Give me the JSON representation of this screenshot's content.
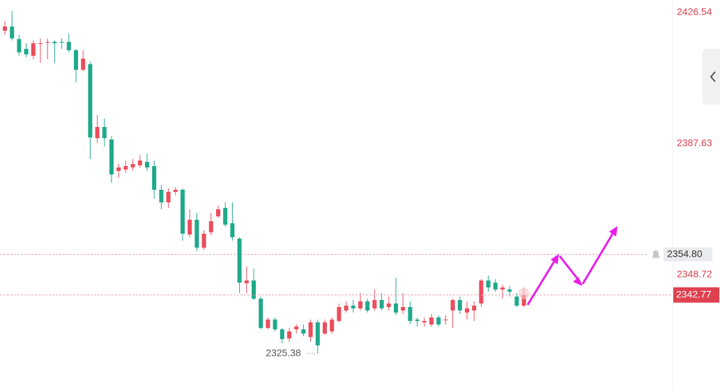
{
  "chart_data": {
    "type": "candlestick",
    "open": [
      2421.16,
      2422.41,
      2418.68,
      2415.78,
      2413.71,
      2417.44,
      2417.64,
      2417.85,
      2417.85,
      2417.85,
      2415.37,
      2409.57,
      2411.23,
      2389.28,
      2392.6,
      2388.87,
      2379.56,
      2379.97,
      2380.59,
      2381.21,
      2382.25,
      2381.0,
      2373.97,
      2370.24,
      2373.35,
      2373.97,
      2360.72,
      2365.07,
      2356.79,
      2361.34,
      2366.1,
      2368.58,
      2364.03,
      2359.48,
      2346.23,
      2347.06,
      2341.67,
      2332.98,
      2335.46,
      2332.57,
      2329.88,
      2332.57,
      2332.57,
      2330.29,
      2334.64,
      2331.32,
      2331.95,
      2335.05,
      2338.16,
      2339.6,
      2338.78,
      2340.85,
      2338.78,
      2341.26,
      2339.19,
      2340.23,
      2338.16,
      2339.19,
      2335.46,
      2334.64,
      2334.02,
      2336.09,
      2335.46,
      2338.16,
      2341.26,
      2337.53,
      2338.16,
      2340.23,
      2347.06,
      2346.41,
      2344.37,
      2344.37,
      2342.3,
      2339.6
    ],
    "high": [
      2424.06,
      2426.96,
      2419.92,
      2417.44,
      2418.26,
      2418.89,
      2418.89,
      2418.26,
      2418.89,
      2420.33,
      2415.78,
      2415.37,
      2412.05,
      2396.11,
      2395.08,
      2389.91,
      2381.62,
      2382.66,
      2383.07,
      2384.32,
      2384.73,
      2382.66,
      2375.42,
      2374.38,
      2374.79,
      2374.38,
      2368.17,
      2367.14,
      2361.96,
      2367.14,
      2369.2,
      2370.24,
      2370.24,
      2359.89,
      2351.2,
      2350.58,
      2342.3,
      2336.09,
      2336.09,
      2332.98,
      2332.98,
      2334.02,
      2334.02,
      2335.46,
      2335.46,
      2335.46,
      2336.09,
      2340.23,
      2340.85,
      2341.26,
      2343.33,
      2341.67,
      2344.37,
      2343.33,
      2342.3,
      2347.88,
      2343.33,
      2340.85,
      2336.09,
      2336.09,
      2337.12,
      2336.71,
      2336.71,
      2341.67,
      2342.3,
      2340.85,
      2340.85,
      2347.47,
      2348.51,
      2347.47,
      2345.81,
      2345.4,
      2343.33,
      2344.99
    ],
    "low": [
      2419.92,
      2418.26,
      2413.71,
      2413.3,
      2412.67,
      2411.64,
      2412.67,
      2411.64,
      2415.78,
      2414.74,
      2405.85,
      2409.16,
      2383.07,
      2387.84,
      2386.8,
      2376.04,
      2377.49,
      2378.93,
      2379.56,
      2380.59,
      2379.56,
      2371.28,
      2368.17,
      2368.58,
      2372.31,
      2358.86,
      2359.89,
      2355.75,
      2356.16,
      2360.51,
      2365.69,
      2362.99,
      2358.86,
      2343.33,
      2343.33,
      2341.26,
      2332.57,
      2332.57,
      2331.95,
      2328.43,
      2328.84,
      2331.32,
      2330.5,
      2328.84,
      2325.38,
      2330.91,
      2331.32,
      2334.64,
      2337.53,
      2337.53,
      2338.16,
      2337.53,
      2338.16,
      2338.16,
      2338.16,
      2336.71,
      2337.12,
      2334.02,
      2333.4,
      2333.4,
      2333.4,
      2333.4,
      2334.02,
      2332.98,
      2337.12,
      2335.46,
      2335.05,
      2339.19,
      2343.74,
      2343.74,
      2341.67,
      2342.3,
      2339.19,
      2339.19
    ],
    "close": [
      2422.41,
      2418.89,
      2414.74,
      2414.12,
      2417.44,
      2417.44,
      2417.85,
      2417.44,
      2417.64,
      2415.37,
      2409.57,
      2412.88,
      2389.49,
      2392.6,
      2389.28,
      2378.52,
      2380.59,
      2381.0,
      2381.62,
      2382.66,
      2380.59,
      2373.97,
      2370.24,
      2373.35,
      2373.97,
      2360.93,
      2365.07,
      2356.79,
      2360.93,
      2364.65,
      2368.17,
      2363.62,
      2359.89,
      2346.41,
      2347.06,
      2341.67,
      2332.98,
      2335.46,
      2332.57,
      2329.67,
      2331.95,
      2333.4,
      2331.32,
      2334.64,
      2327.81,
      2334.64,
      2335.46,
      2339.19,
      2339.6,
      2338.78,
      2340.85,
      2338.16,
      2341.26,
      2338.78,
      2340.23,
      2337.53,
      2339.19,
      2335.05,
      2335.05,
      2335.05,
      2336.09,
      2334.02,
      2335.46,
      2341.26,
      2338.16,
      2338.78,
      2339.6,
      2347.06,
      2344.99,
      2344.37,
      2344.99,
      2343.74,
      2339.6,
      2342.77
    ],
    "up_color": "#eb4d5c",
    "down_color": "#1fa98b",
    "ylim": [
      2314.57,
      2430.27
    ],
    "yticks": [
      2426.54,
      2387.63,
      2348.72
    ],
    "alert_price": {
      "value": 2354.8,
      "label": "2354.80"
    }
  }
}
